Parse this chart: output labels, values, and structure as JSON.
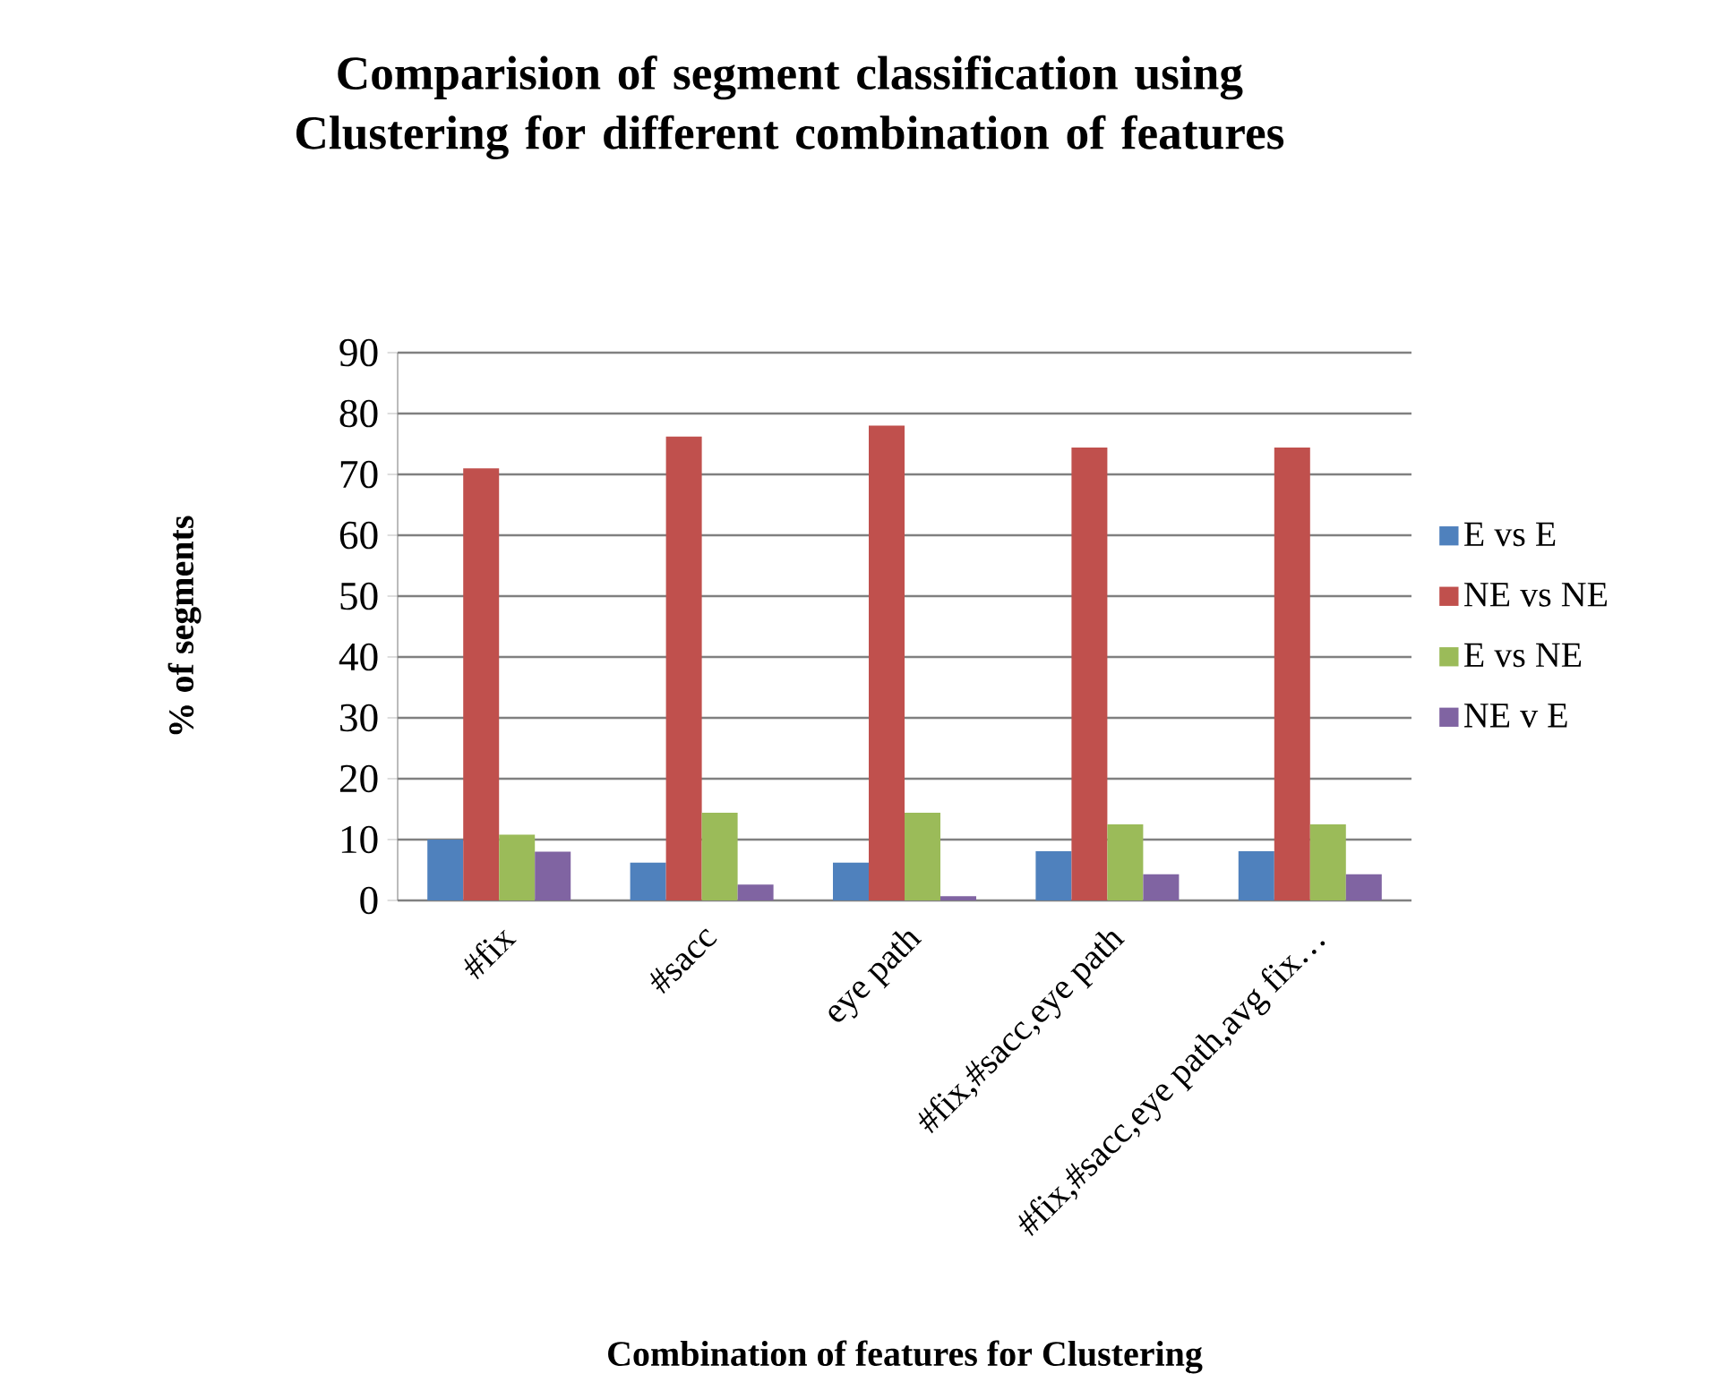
{
  "chart_data": {
    "type": "bar",
    "title": "Comparision of segment classification using Clustering for different combination of features",
    "xlabel": "Combination of features for Clustering",
    "ylabel": "% of segments",
    "categories": [
      "#fix",
      "#sacc",
      "eye path",
      "#fix,#sacc,eye path",
      "#fix,#sacc,eye path,avg fix…"
    ],
    "series": [
      {
        "name": "E vs E",
        "color": "#4f81bd",
        "values": [
          10,
          6.2,
          6.2,
          8.1,
          8.1
        ]
      },
      {
        "name": "NE vs NE",
        "color": "#c0504d",
        "values": [
          71,
          76.2,
          78,
          74.4,
          74.4
        ]
      },
      {
        "name": "E vs NE",
        "color": "#9bbb59",
        "values": [
          10.8,
          14.4,
          14.4,
          12.5,
          12.5
        ]
      },
      {
        "name": "NE v E",
        "color": "#8064a2",
        "values": [
          8,
          2.6,
          0.7,
          4.3,
          4.3
        ]
      }
    ],
    "ylim": [
      0,
      90
    ],
    "yticks": [
      0,
      10,
      20,
      30,
      40,
      50,
      60,
      70,
      80,
      90
    ],
    "grid": "y",
    "legend": "right"
  }
}
